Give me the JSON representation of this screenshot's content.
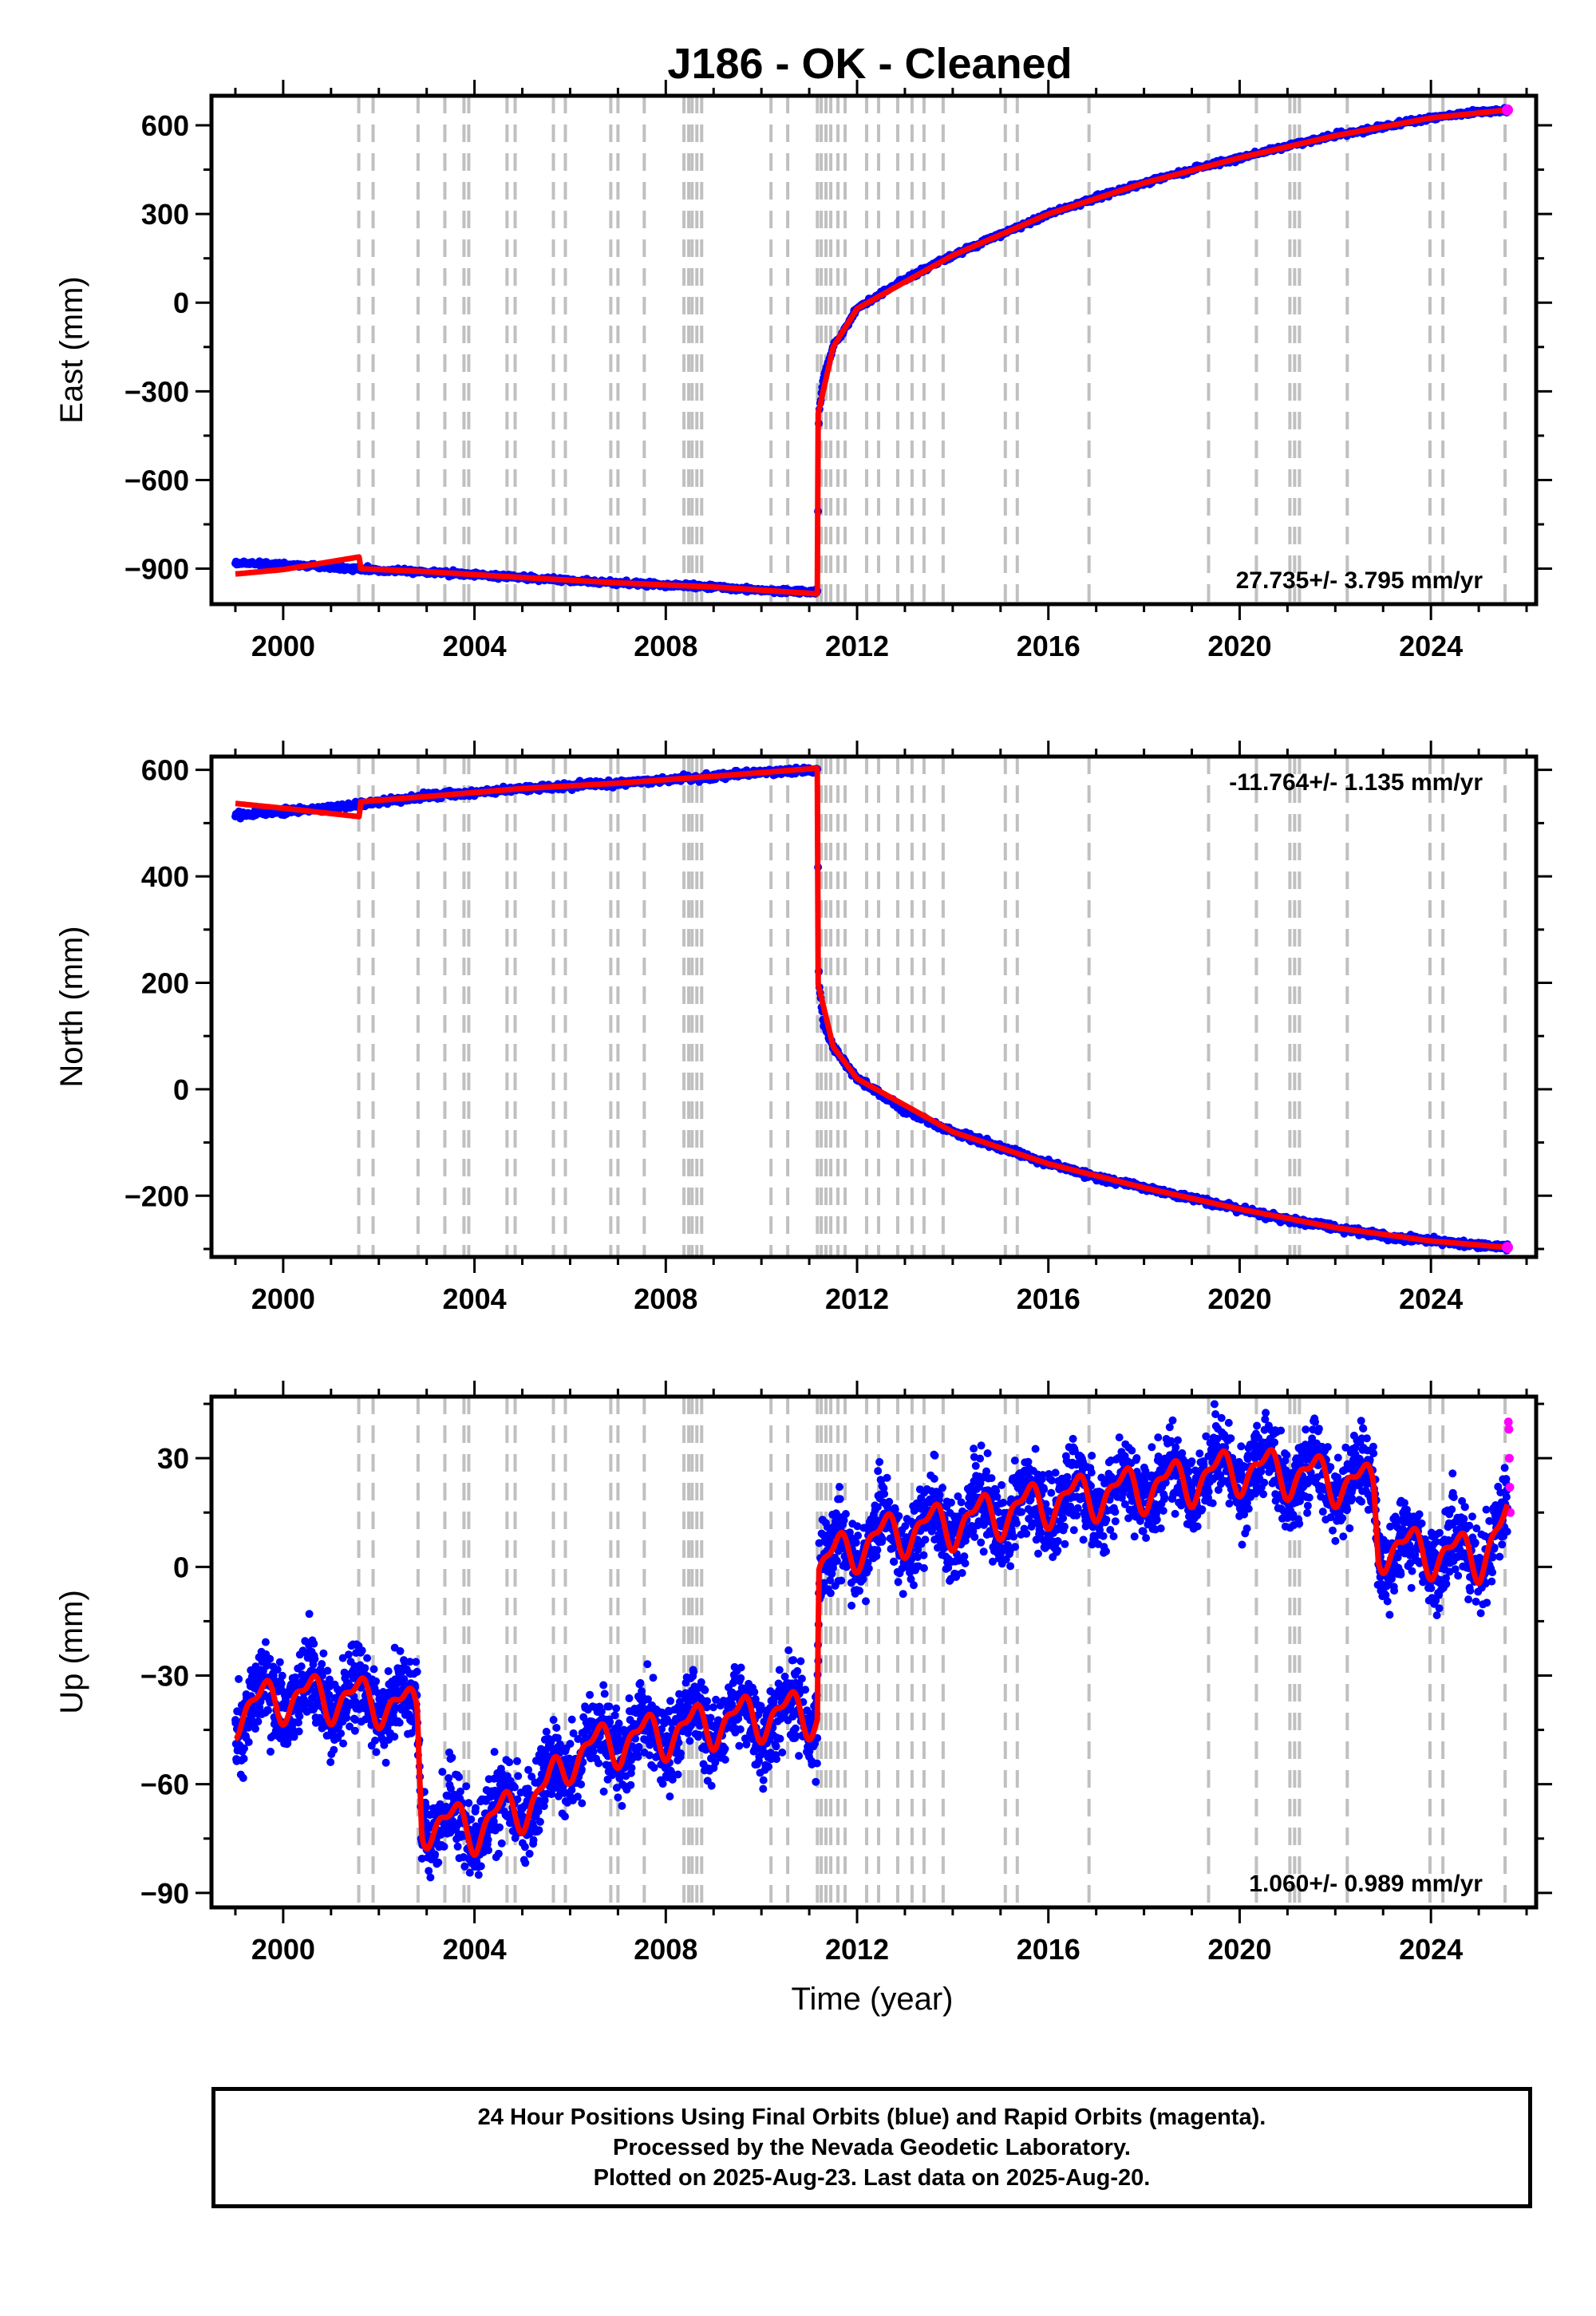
{
  "title": "J186  - OK - Cleaned",
  "xlabel": "Time (year)",
  "caption": [
    "24 Hour Positions Using Final Orbits (blue) and Rapid Orbits (magenta).",
    "Processed by the Nevada Geodetic Laboratory.",
    "Plotted on 2025-Aug-23. Last data on 2025-Aug-20."
  ],
  "colors": {
    "final": "#0000ff",
    "rapid": "#ff00ff",
    "model": "#ff0000",
    "event": "#c0c0c0"
  },
  "chart_data": [
    {
      "type": "scatter",
      "panel": "east",
      "ylabel": "East (mm)",
      "xlim": [
        1998.5,
        2026.2
      ],
      "ylim": [
        -1020,
        700
      ],
      "xticks": [
        "2000",
        "2004",
        "2008",
        "2012",
        "2016",
        "2020",
        "2024"
      ],
      "yticks": [
        "600",
        "300",
        "0",
        "−300",
        "−600",
        "−900"
      ],
      "rate": "27.735+/- 3.795 mm/yr",
      "rate_position": "bottom-right",
      "series": [
        {
          "kind": "final",
          "x": [
            1999.0,
            2000.0,
            2001.0,
            2001.6,
            2002.0,
            2003.0,
            2004.0,
            2005.0,
            2006.0,
            2007.0,
            2008.0,
            2009.0,
            2010.0,
            2011.17,
            2011.2,
            2011.3,
            2011.5,
            2012.0,
            2013.0,
            2014.0,
            2015.0,
            2016.0,
            2017.0,
            2018.0,
            2019.0,
            2020.0,
            2021.0,
            2022.0,
            2023.0,
            2024.0,
            2025.0,
            2025.6
          ],
          "y": [
            -880,
            -886,
            -895,
            -902,
            -905,
            -912,
            -920,
            -930,
            -940,
            -948,
            -955,
            -962,
            -972,
            -980,
            -380,
            -250,
            -150,
            -20,
            80,
            160,
            230,
            300,
            355,
            405,
            450,
            490,
            530,
            565,
            595,
            625,
            645,
            652
          ]
        },
        {
          "kind": "model",
          "x": [
            1999.0,
            2000.0,
            2001.6,
            2001.61,
            2003.0,
            2005.0,
            2007.0,
            2009.0,
            2011.17,
            2011.18,
            2011.5,
            2012.0,
            2014.0,
            2016.0,
            2018.0,
            2020.0,
            2022.0,
            2024.0,
            2025.6
          ],
          "y": [
            -918,
            -903,
            -860,
            -900,
            -910,
            -930,
            -948,
            -962,
            -985,
            -380,
            -150,
            -20,
            160,
            300,
            405,
            490,
            565,
            625,
            652
          ]
        }
      ]
    },
    {
      "type": "scatter",
      "panel": "north",
      "ylabel": "North (mm)",
      "xlim": [
        1998.5,
        2026.2
      ],
      "ylim": [
        -315,
        625
      ],
      "xticks": [
        "2000",
        "2004",
        "2008",
        "2012",
        "2016",
        "2020",
        "2024"
      ],
      "yticks": [
        "600",
        "400",
        "200",
        "0",
        "−200"
      ],
      "rate": "-11.764+/- 1.135 mm/yr",
      "rate_position": "top-right",
      "series": [
        {
          "kind": "final",
          "x": [
            1999.0,
            2000.0,
            2001.0,
            2001.6,
            2002.0,
            2003.0,
            2004.0,
            2005.0,
            2006.0,
            2007.0,
            2008.0,
            2009.0,
            2010.0,
            2011.17,
            2011.2,
            2011.3,
            2011.5,
            2012.0,
            2013.0,
            2014.0,
            2015.0,
            2016.0,
            2017.0,
            2018.0,
            2019.0,
            2020.0,
            2021.0,
            2022.0,
            2023.0,
            2024.0,
            2025.0,
            2025.6
          ],
          "y": [
            515,
            522,
            528,
            535,
            540,
            550,
            558,
            565,
            570,
            575,
            580,
            588,
            595,
            600,
            200,
            120,
            80,
            20,
            -40,
            -80,
            -110,
            -140,
            -165,
            -185,
            -205,
            -225,
            -245,
            -260,
            -275,
            -285,
            -293,
            -297
          ]
        },
        {
          "kind": "model",
          "x": [
            1999.0,
            2000.0,
            2001.6,
            2001.61,
            2003.0,
            2005.0,
            2007.0,
            2009.0,
            2011.17,
            2011.18,
            2011.5,
            2012.0,
            2014.0,
            2016.0,
            2018.0,
            2020.0,
            2022.0,
            2024.0,
            2025.6
          ],
          "y": [
            537,
            528,
            512,
            540,
            550,
            565,
            575,
            588,
            603,
            200,
            80,
            20,
            -80,
            -140,
            -185,
            -225,
            -260,
            -285,
            -297
          ]
        }
      ]
    },
    {
      "type": "scatter",
      "panel": "up",
      "ylabel": "Up (mm)",
      "xlim": [
        1998.5,
        2026.2
      ],
      "ylim": [
        -94,
        47
      ],
      "xticks": [
        "2000",
        "2004",
        "2008",
        "2012",
        "2016",
        "2020",
        "2024"
      ],
      "yticks": [
        "30",
        "0",
        "−30",
        "−60",
        "−90"
      ],
      "rate": "1.060+/- 0.989 mm/yr",
      "rate_position": "bottom-right",
      "series": [
        {
          "kind": "final",
          "x": [
            1999.0,
            2000.0,
            2001.0,
            2002.0,
            2002.8,
            2002.9,
            2004.0,
            2005.0,
            2005.5,
            2006.0,
            2007.0,
            2008.0,
            2009.0,
            2010.0,
            2011.17,
            2011.2,
            2012.0,
            2013.0,
            2014.0,
            2015.0,
            2016.0,
            2017.0,
            2018.0,
            2019.0,
            2020.0,
            2021.0,
            2022.0,
            2022.8,
            2022.9,
            2024.0,
            2025.0,
            2025.6
          ],
          "y": [
            -40,
            -36,
            -36,
            -37,
            -40,
            -70,
            -72,
            -66,
            -62,
            -52,
            -48,
            -46,
            -43,
            -41,
            -40,
            0,
            6,
            10,
            12,
            15,
            18,
            20,
            22,
            24,
            27,
            26,
            24,
            22,
            6,
            4,
            3,
            12
          ]
        },
        {
          "kind": "rapid",
          "x": [
            2025.62,
            2025.63,
            2025.64,
            2025.65,
            2025.66
          ],
          "y": [
            40,
            38,
            30,
            22,
            15
          ]
        },
        {
          "kind": "model",
          "x": [
            1999.0,
            2000.0,
            2001.0,
            2002.0,
            2002.8,
            2002.9,
            2004.0,
            2005.0,
            2005.5,
            2006.0,
            2007.0,
            2008.0,
            2009.0,
            2010.0,
            2011.17,
            2011.2,
            2012.0,
            2013.0,
            2014.0,
            2015.0,
            2016.0,
            2017.0,
            2018.0,
            2019.0,
            2020.0,
            2021.0,
            2022.0,
            2022.8,
            2022.9,
            2024.0,
            2025.0,
            2025.6
          ],
          "y": [
            -40,
            -36,
            -36,
            -37,
            -40,
            -70,
            -72,
            -66,
            -62,
            -52,
            -48,
            -46,
            -43,
            -41,
            -40,
            0,
            6,
            10,
            12,
            15,
            18,
            20,
            22,
            24,
            27,
            26,
            24,
            22,
            6,
            4,
            3,
            12
          ]
        }
      ]
    }
  ],
  "events": [
    2001.58,
    2001.88,
    2002.82,
    2003.38,
    2003.78,
    2003.88,
    2004.68,
    2004.85,
    2005.65,
    2005.9,
    2006.85,
    2007.0,
    2007.55,
    2008.38,
    2008.48,
    2008.55,
    2008.65,
    2008.75,
    2010.2,
    2010.55,
    2011.17,
    2011.25,
    2011.35,
    2011.45,
    2011.6,
    2011.75,
    2012.2,
    2012.45,
    2012.85,
    2013.15,
    2013.4,
    2013.8,
    2015.1,
    2015.35,
    2016.85,
    2019.35,
    2020.35,
    2021.05,
    2021.15,
    2021.25,
    2022.25,
    2023.98,
    2024.25,
    2025.55
  ]
}
